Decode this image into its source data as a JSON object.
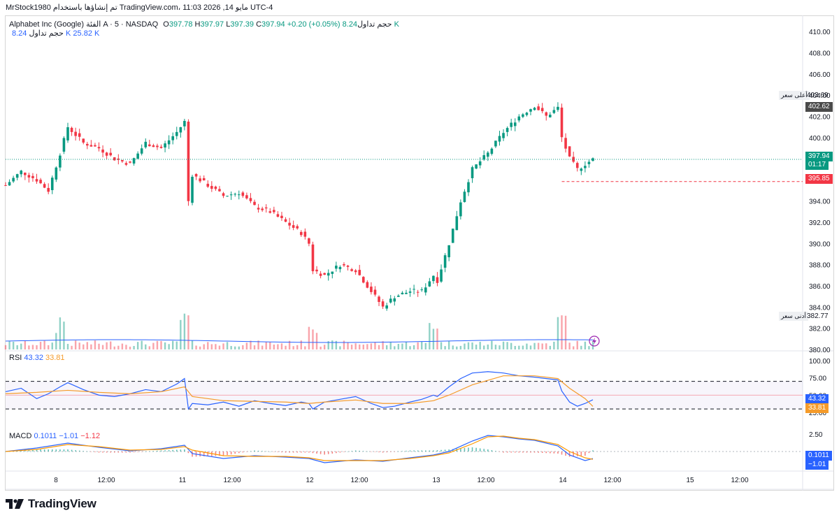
{
  "header": {
    "text": "MrStock1980 تم إنشاؤها باستخدام TradingView.com، 11:03 2026 ,14 مايو UTC-4"
  },
  "legend": {
    "symbol_line": "Alphabet Inc (Google) الفئة A · 5 · NASDAQ",
    "o_label": "O",
    "o_value": "397.78",
    "h_label": "H",
    "h_value": "397.97",
    "l_label": "L",
    "l_value": "397.39",
    "c_label": "C",
    "c_value": "397.94",
    "change": "+0.20 (+0.05%)",
    "volume_label": "حجم تداول",
    "volume_value": "8.24 K",
    "volume2_label": "حجم تداول",
    "volume2_values": "8.24 K  25.82 K"
  },
  "rsi_legend": {
    "label": "RSI",
    "value1": "43.32",
    "value2": "33.81"
  },
  "macd_legend": {
    "label": "MACD",
    "value1": "0.1011",
    "value2": "−1.01",
    "value3": "−1.12"
  },
  "price_tags": {
    "high_label": "أعلى سعر",
    "high_value": "403.69",
    "prev_value": "402.62",
    "last_value": "397.94",
    "countdown": "01:17",
    "low_line_value": "395.85",
    "low_label": "أدنى سعر",
    "low_value": "382.77",
    "rsi_tag1": "43.32",
    "rsi_tag2": "33.81",
    "macd_tag1": "0.1011",
    "macd_tag2": "−1.01"
  },
  "logo": {
    "text": "TradingView"
  },
  "colors": {
    "up": "#089981",
    "down": "#f23645",
    "rsi": "#2962ff",
    "rsi_ma": "#f59b2a",
    "macd": "#2962ff",
    "signal": "#ff9800"
  },
  "chart_data": [
    {
      "type": "candlestick",
      "title": "Alphabet Inc (Google) الفئة A · 5 · NASDAQ",
      "ylim": [
        380,
        411
      ],
      "y_ticks": [
        380,
        382,
        384,
        386,
        388,
        390,
        392,
        394,
        396,
        398,
        400,
        402,
        404,
        406,
        408,
        410
      ],
      "y_tick_labels": [
        "380.00",
        "382.00",
        "384.00",
        "386.00",
        "388.00",
        "390.00",
        "392.00",
        "394.00",
        "396.00",
        "398.00",
        "400.00",
        "402.00",
        "404.00",
        "406.00",
        "408.00",
        "410.00"
      ],
      "x_tick_labels": [
        "8",
        "12:00",
        "11",
        "12:00",
        "12",
        "12:00",
        "13",
        "12:00",
        "14",
        "12:00",
        "15",
        "12:00"
      ],
      "series": [
        {
          "name": "price",
          "points": [
            {
              "x": 0,
              "c": 395.5
            },
            {
              "x": 4,
              "c": 396.8
            },
            {
              "x": 8,
              "c": 396.0
            },
            {
              "x": 11,
              "c": 395.0
            },
            {
              "x": 14,
              "c": 398.5
            },
            {
              "x": 16,
              "c": 401.0
            },
            {
              "x": 20,
              "c": 399.5
            },
            {
              "x": 24,
              "c": 399.0
            },
            {
              "x": 28,
              "c": 398.0
            },
            {
              "x": 32,
              "c": 397.5
            },
            {
              "x": 36,
              "c": 399.5
            },
            {
              "x": 40,
              "c": 399.0
            },
            {
              "x": 44,
              "c": 400.5
            },
            {
              "x": 46,
              "c": 401.5
            },
            {
              "x": 47,
              "c": 394.0
            },
            {
              "x": 48,
              "c": 396.5
            },
            {
              "x": 52,
              "c": 395.5
            },
            {
              "x": 56,
              "c": 394.5
            },
            {
              "x": 60,
              "c": 394.8
            },
            {
              "x": 64,
              "c": 393.5
            },
            {
              "x": 68,
              "c": 393.0
            },
            {
              "x": 72,
              "c": 392.0
            },
            {
              "x": 76,
              "c": 391.0
            },
            {
              "x": 78,
              "c": 390.0
            },
            {
              "x": 79,
              "c": 387.5
            },
            {
              "x": 82,
              "c": 387.0
            },
            {
              "x": 86,
              "c": 388.0
            },
            {
              "x": 90,
              "c": 387.5
            },
            {
              "x": 94,
              "c": 385.5
            },
            {
              "x": 97,
              "c": 384.0
            },
            {
              "x": 100,
              "c": 385.0
            },
            {
              "x": 104,
              "c": 385.5
            },
            {
              "x": 107,
              "c": 385.5
            },
            {
              "x": 110,
              "c": 387.0
            },
            {
              "x": 111,
              "c": 386.5
            },
            {
              "x": 114,
              "c": 390.0
            },
            {
              "x": 117,
              "c": 394.0
            },
            {
              "x": 120,
              "c": 397.0
            },
            {
              "x": 124,
              "c": 398.5
            },
            {
              "x": 128,
              "c": 400.5
            },
            {
              "x": 132,
              "c": 402.0
            },
            {
              "x": 136,
              "c": 403.0
            },
            {
              "x": 139,
              "c": 402.0
            },
            {
              "x": 142,
              "c": 402.8
            },
            {
              "x": 143,
              "c": 400.0
            },
            {
              "x": 145,
              "c": 398.0
            },
            {
              "x": 147,
              "c": 397.0
            },
            {
              "x": 149,
              "c": 397.5
            },
            {
              "x": 151,
              "c": 397.94
            }
          ]
        }
      ],
      "high_marker": 403.69,
      "low_marker": 382.77,
      "last_price": 397.94,
      "dashed_level": 395.85
    },
    {
      "type": "line",
      "title": "RSI",
      "ylim": [
        15,
        110
      ],
      "y_ticks": [
        100,
        75,
        50,
        25
      ],
      "y_tick_labels": [
        "100.00",
        "75.00",
        "50.00",
        "25.00"
      ],
      "bands": [
        70,
        50,
        30
      ],
      "series": [
        {
          "name": "RSI",
          "x": [
            0,
            4,
            8,
            11,
            14,
            16,
            20,
            24,
            28,
            32,
            36,
            40,
            44,
            46,
            47,
            48,
            52,
            56,
            60,
            64,
            68,
            72,
            76,
            78,
            79,
            82,
            86,
            90,
            94,
            97,
            100,
            104,
            107,
            110,
            111,
            114,
            117,
            120,
            124,
            128,
            132,
            136,
            139,
            142,
            143,
            145,
            147,
            149,
            151
          ],
          "values": [
            55,
            60,
            45,
            52,
            62,
            68,
            58,
            50,
            48,
            52,
            58,
            55,
            66,
            74,
            30,
            38,
            36,
            40,
            34,
            42,
            38,
            35,
            40,
            38,
            30,
            40,
            44,
            48,
            38,
            32,
            34,
            40,
            44,
            50,
            48,
            62,
            74,
            82,
            84,
            82,
            78,
            76,
            74,
            72,
            56,
            40,
            34,
            38,
            43.32
          ]
        },
        {
          "name": "RSI MA",
          "x": [
            0,
            8,
            16,
            24,
            32,
            40,
            46,
            48,
            56,
            64,
            72,
            78,
            82,
            90,
            97,
            104,
            110,
            114,
            120,
            128,
            136,
            142,
            145,
            149,
            151
          ],
          "values": [
            52,
            54,
            57,
            54,
            52,
            55,
            62,
            48,
            42,
            41,
            40,
            38,
            40,
            43,
            38,
            38,
            42,
            50,
            65,
            78,
            78,
            74,
            60,
            45,
            33.81
          ]
        }
      ]
    },
    {
      "type": "line",
      "title": "MACD",
      "ylim": [
        -2.6,
        3.2
      ],
      "y_ticks": [
        2.5
      ],
      "y_tick_labels": [
        "2.50"
      ],
      "series": [
        {
          "name": "MACD",
          "x": [
            0,
            8,
            16,
            24,
            32,
            40,
            46,
            48,
            56,
            64,
            72,
            78,
            82,
            90,
            97,
            104,
            110,
            114,
            120,
            124,
            128,
            132,
            136,
            142,
            145,
            149,
            151
          ],
          "values": [
            0.0,
            0.5,
            1.2,
            0.6,
            0.1,
            0.4,
            0.9,
            -0.3,
            -1.0,
            -0.6,
            -0.8,
            -1.0,
            -1.6,
            -1.2,
            -1.4,
            -0.9,
            -0.5,
            0.0,
            1.5,
            2.3,
            2.1,
            1.8,
            1.6,
            0.8,
            -0.5,
            -1.3,
            -1.01
          ]
        },
        {
          "name": "Signal",
          "x": [
            0,
            8,
            16,
            24,
            32,
            40,
            46,
            48,
            56,
            64,
            72,
            78,
            82,
            90,
            97,
            104,
            110,
            114,
            120,
            124,
            128,
            132,
            136,
            142,
            145,
            149,
            151
          ],
          "values": [
            0.0,
            0.3,
            1.0,
            0.7,
            0.2,
            0.3,
            0.7,
            0.2,
            -0.6,
            -0.7,
            -0.7,
            -0.9,
            -1.3,
            -1.3,
            -1.3,
            -1.0,
            -0.6,
            -0.2,
            1.1,
            2.1,
            2.2,
            1.9,
            1.7,
            1.0,
            0.0,
            -0.9,
            -1.12
          ]
        }
      ]
    }
  ]
}
